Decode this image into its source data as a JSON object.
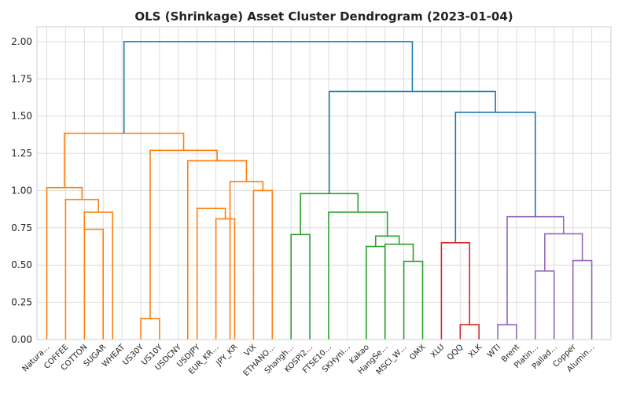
{
  "chart_data": {
    "type": "dendrogram",
    "title": "OLS (Shrinkage) Asset Cluster Dendrogram (2023-01-04)",
    "xlabel": "",
    "ylabel": "",
    "ylim": [
      0,
      2.1
    ],
    "yticks": [
      0.0,
      0.25,
      0.5,
      0.75,
      1.0,
      1.25,
      1.5,
      1.75,
      2.0
    ],
    "ytick_labels": [
      "0.00",
      "0.25",
      "0.50",
      "0.75",
      "1.00",
      "1.25",
      "1.50",
      "1.75",
      "2.00"
    ],
    "grid": true,
    "leaves": [
      "Natura…",
      "COFFEE",
      "COTTON",
      "SUGAR",
      "WHEAT",
      "US30Y",
      "US10Y",
      "USDCNY",
      "USDJPY",
      "EUR_KR…",
      "JPY_KR",
      "VIX",
      "ETHANO…",
      "Shangh…",
      "KOSPI2…",
      "FTSE10…",
      "SKHyni…",
      "Kakao",
      "HangSe…",
      "MSCI_W…",
      "OMX",
      "XLU",
      "QQQ",
      "XLK",
      "WTI",
      "Brent",
      "Platin…",
      "Pallad…",
      "Copper",
      "Alumin…"
    ],
    "colors": {
      "orange": "#ff7f0e",
      "green": "#2ca02c",
      "red": "#d62728",
      "purple": "#9467bd",
      "blue": "#1f77b4"
    },
    "links": [
      {
        "left": 5,
        "right": 6,
        "height": 0.14,
        "color": "orange"
      },
      {
        "left": 9,
        "right": 10,
        "height": 0.81,
        "color": "orange"
      },
      {
        "left": 2,
        "right": 3,
        "height": 0.74,
        "color": "orange"
      },
      {
        "left": 8,
        "right": 9.5,
        "height": 0.88,
        "color": "orange"
      },
      {
        "left": 2,
        "right": 3.5,
        "height": 0.855,
        "color": "orange"
      },
      {
        "left": 1,
        "right": 2.75,
        "height": 0.94,
        "color": "orange"
      },
      {
        "left": 11,
        "right": 12,
        "height": 1.0,
        "color": "orange"
      },
      {
        "left": 0,
        "right": 1.875,
        "height": 1.02,
        "color": "orange"
      },
      {
        "left": 9.75,
        "right": 11.5,
        "height": 1.06,
        "color": "orange"
      },
      {
        "left": 7.5,
        "right": 10.625,
        "height": 1.2,
        "color": "orange"
      },
      {
        "left": 5.5,
        "right": 9.0625,
        "height": 1.27,
        "color": "orange"
      },
      {
        "left": 0.9375,
        "right": 7.28125,
        "height": 1.385,
        "color": "orange"
      },
      {
        "left": 19,
        "right": 20,
        "height": 0.525,
        "color": "green"
      },
      {
        "left": 17,
        "right": 18,
        "height": 0.625,
        "color": "green"
      },
      {
        "left": 18,
        "right": 19.5,
        "height": 0.64,
        "color": "green"
      },
      {
        "left": 17.5,
        "right": 18.75,
        "height": 0.695,
        "color": "green"
      },
      {
        "left": 13,
        "right": 14,
        "height": 0.705,
        "color": "green"
      },
      {
        "left": 15,
        "right": 18.125,
        "height": 0.855,
        "color": "green"
      },
      {
        "left": 13.5,
        "right": 16.5625,
        "height": 0.98,
        "color": "green"
      },
      {
        "left": 22,
        "right": 23,
        "height": 0.1,
        "color": "red"
      },
      {
        "left": 21,
        "right": 22.5,
        "height": 0.65,
        "color": "red"
      },
      {
        "left": 24,
        "right": 25,
        "height": 0.1,
        "color": "purple"
      },
      {
        "left": 26,
        "right": 27,
        "height": 0.46,
        "color": "purple"
      },
      {
        "left": 28,
        "right": 29,
        "height": 0.53,
        "color": "purple"
      },
      {
        "left": 26.5,
        "right": 28.5,
        "height": 0.71,
        "color": "purple"
      },
      {
        "left": 24.5,
        "right": 27.5,
        "height": 0.825,
        "color": "purple"
      },
      {
        "left": 21.75,
        "right": 26,
        "height": 1.525,
        "color": "blue"
      },
      {
        "left": 15.03125,
        "right": 23.875,
        "height": 1.665,
        "color": "blue"
      },
      {
        "left": 4.109375,
        "right": 19.453125,
        "height": 2.0,
        "color": "blue"
      }
    ]
  }
}
